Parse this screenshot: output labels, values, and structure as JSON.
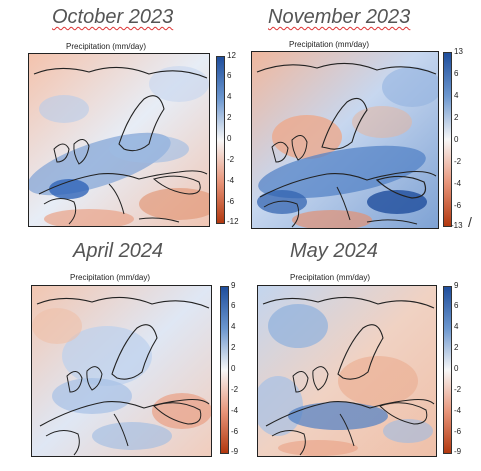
{
  "panels": [
    {
      "month": "October 2023",
      "title": "Precipitation (mm/day)",
      "ticks": [
        "12",
        "6",
        "4",
        "2",
        "0",
        "-2",
        "-4",
        "-6",
        "-12"
      ]
    },
    {
      "month": "November 2023",
      "title": "Precipitation (mm/day)",
      "ticks": [
        "13",
        "6",
        "4",
        "2",
        "0",
        "-2",
        "-4",
        "-6",
        "-13"
      ],
      "extra_mark": "/"
    },
    {
      "month": "April 2024",
      "title": "Precipitation (mm/day)",
      "ticks": [
        "9",
        "6",
        "4",
        "2",
        "0",
        "-2",
        "-4",
        "-6",
        "-9"
      ]
    },
    {
      "month": "May 2024",
      "title": "Precipitation (mm/day)",
      "ticks": [
        "9",
        "6",
        "4",
        "2",
        "0",
        "-2",
        "-4",
        "-6",
        "-9"
      ]
    }
  ],
  "colorbar": {
    "top_color": "#1f4e9c",
    "mid_color": "#f7f7f7",
    "bottom_color": "#b2380f"
  }
}
